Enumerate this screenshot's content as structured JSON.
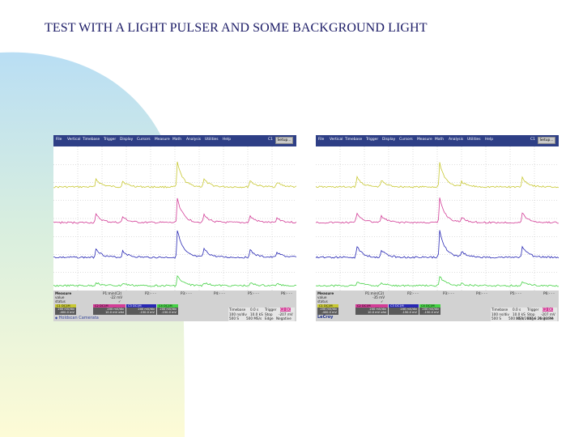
{
  "slide": {
    "title": "TEST WITH A LIGHT PULSER AND SOME BACKGROUND LIGHT"
  },
  "menu": [
    "File",
    "Vertical",
    "Timebase",
    "Trigger",
    "Display",
    "Cursors",
    "Measure",
    "Math",
    "Analysis",
    "Utilities",
    "Help"
  ],
  "colors": {
    "ch1": "#c8c832",
    "ch2": "#d23c96",
    "ch3": "#2828b4",
    "ch4": "#46d246",
    "menubar": "#2e3f86",
    "title": "#1b1b66"
  },
  "scopes": [
    {
      "ch_label": "C1",
      "setup": "Setup...",
      "measure": {
        "label": "Measure",
        "value_label": "value",
        "status_label": "status",
        "p1_name": "P1:min(C2)",
        "p1_value": "-22 mV",
        "p1_status": "✓",
        "p2": "P2:- - -",
        "p3": "P3:- - -",
        "p4": "P4:- - -",
        "p5": "P5:- - -",
        "p6": "P6:- - -"
      },
      "tiles": [
        {
          "name": "C1",
          "tag": "DC1M",
          "line1": "200 mV/div",
          "line2": "-400.0 mV"
        },
        {
          "name": "C2",
          "tag": "DC1M",
          "line1": "200 mV/div",
          "line2": "10.0 mV ofst"
        },
        {
          "name": "C3",
          "tag": "DC1M",
          "line1": "200 mV/div",
          "line2": "-150.0 mV"
        },
        {
          "name": "C4",
          "tag": "DC1M",
          "line1": "200 mV/div",
          "line2": "-150.0 mV"
        }
      ],
      "timebase": {
        "label": "Timebase",
        "trigger_label": "Trigger",
        "r1": [
          "Timebase",
          "0.0 s",
          "Trigger",
          "C2 DC"
        ],
        "r2": [
          "100 ns/div",
          "10.0 kS",
          "Stop",
          "-207 mV"
        ],
        "r3": [
          "500 S",
          "500 MS/s",
          "Edge",
          "Negative"
        ]
      },
      "footer": "Holdscan Camerata",
      "date": ""
    },
    {
      "ch_label": "C1",
      "setup": "Setup...",
      "measure": {
        "label": "Measure",
        "value_label": "value",
        "status_label": "status",
        "p1_name": "P1:min(C2)",
        "p1_value": "-35 mV",
        "p1_status": "✓",
        "p2": "P2:- - -",
        "p3": "P3:- - -",
        "p4": "P4:- - -",
        "p5": "P5:- - -",
        "p6": "P6:- - -"
      },
      "tiles": [
        {
          "name": "C1",
          "tag": "DC1M",
          "line1": "200 mV/div",
          "line2": "-400.0 mV"
        },
        {
          "name": "C2",
          "tag": "DC1M",
          "line1": "200 mV/div",
          "line2": "10.0 mV ofst"
        },
        {
          "name": "C3",
          "tag": "DC1M",
          "line1": "200 mV/div",
          "line2": "-150.0 mV"
        },
        {
          "name": "C4",
          "tag": "DC1M",
          "line1": "200 mV/div",
          "line2": "-150.0 mV"
        }
      ],
      "timebase": {
        "label": "Timebase",
        "trigger_label": "Trigger",
        "r1": [
          "Timebase",
          "0.0 s",
          "Trigger",
          "C2 DC"
        ],
        "r2": [
          "100 ns/div",
          "10.0 kS",
          "Stop",
          "-207 mV"
        ],
        "r3": [
          "500 S",
          "500 MS/s",
          "Edge",
          "Negative"
        ]
      },
      "footer": "LeCroy",
      "date": "10/1/2007 6:26:36 PM"
    }
  ]
}
